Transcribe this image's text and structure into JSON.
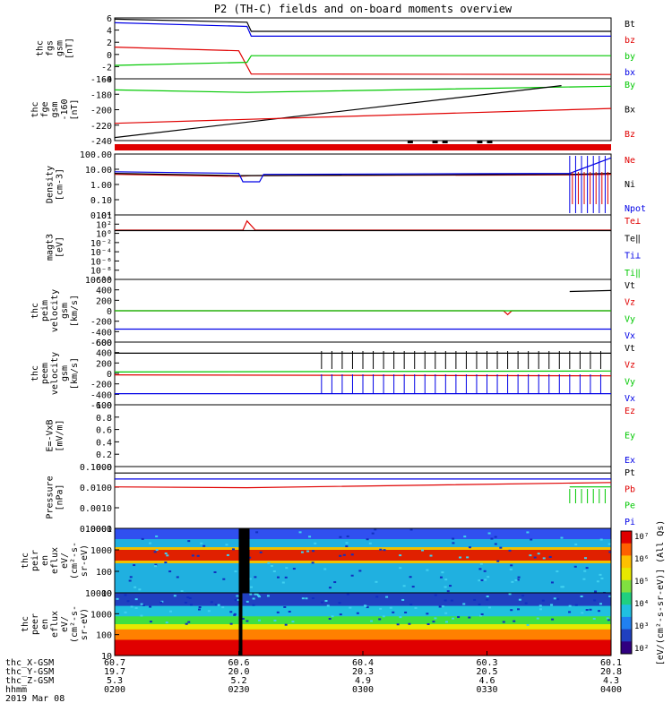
{
  "title": "P2 (TH-C) fields and on-board moments overview",
  "colors": {
    "black": "#000000",
    "red": "#e00000",
    "green": "#00c800",
    "blue": "#0000e6"
  },
  "panels": [
    {
      "id": "fgs",
      "ylabel": [
        "thc",
        "fgs",
        "gsm",
        "[nT]"
      ],
      "ticks": [
        "6",
        "4",
        "2",
        "0",
        "-2",
        "-4"
      ],
      "legend": [
        {
          "t": "Bt",
          "c": "black"
        },
        {
          "t": "bz",
          "c": "red"
        },
        {
          "t": "by",
          "c": "green"
        },
        {
          "t": "bx",
          "c": "blue"
        }
      ]
    },
    {
      "id": "fge",
      "ylabel": [
        "thc",
        "fge",
        "gsm",
        "-160",
        "[nT]"
      ],
      "ticks": [
        "-160",
        "-180",
        "-200",
        "-220",
        "-240"
      ],
      "legend": [
        {
          "t": "By",
          "c": "green"
        },
        {
          "t": "Bx",
          "c": "black"
        },
        {
          "t": "Bz",
          "c": "red"
        }
      ]
    },
    {
      "id": "density",
      "ylabel": [
        "Density",
        "[cm-3]"
      ],
      "ticks": [
        "100.00",
        "10.00",
        "1.00",
        "0.10",
        "0.01"
      ],
      "legend": [
        {
          "t": "Ne",
          "c": "red"
        },
        {
          "t": "Ni",
          "c": "black"
        },
        {
          "t": "Npot",
          "c": "blue"
        }
      ]
    },
    {
      "id": "temp",
      "ylabel": [
        "magt3",
        "[eV]"
      ],
      "ticks": [
        "10⁴",
        "10²",
        "10⁰",
        "10⁻²",
        "10⁻⁴",
        "10⁻⁶",
        "10⁻⁸",
        "10⁻¹⁰"
      ],
      "legend": [
        {
          "t": "Te⊥",
          "c": "red"
        },
        {
          "t": "Te‖",
          "c": "black"
        },
        {
          "t": "Ti⊥",
          "c": "blue"
        },
        {
          "t": "Ti‖",
          "c": "green"
        }
      ]
    },
    {
      "id": "peim",
      "ylabel": [
        "thc",
        "peim",
        "velocity",
        "gsm",
        "[km/s]"
      ],
      "ticks": [
        "600",
        "400",
        "200",
        "0",
        "-200",
        "-400",
        "-600"
      ],
      "legend": [
        {
          "t": "Vt",
          "c": "black"
        },
        {
          "t": "Vz",
          "c": "red"
        },
        {
          "t": "Vy",
          "c": "green"
        },
        {
          "t": "Vx",
          "c": "blue"
        }
      ]
    },
    {
      "id": "peem",
      "ylabel": [
        "thc",
        "peem",
        "velocity",
        "gsm",
        "[km/s]"
      ],
      "ticks": [
        "600",
        "400",
        "200",
        "0",
        "-200",
        "-400",
        "-600"
      ],
      "legend": [
        {
          "t": "Vt",
          "c": "black"
        },
        {
          "t": "Vz",
          "c": "red"
        },
        {
          "t": "Vy",
          "c": "green"
        },
        {
          "t": "Vx",
          "c": "blue"
        }
      ]
    },
    {
      "id": "efield",
      "ylabel": [
        "E=-VxB",
        "[mV/m]"
      ],
      "ticks": [
        "1.0",
        "0.8",
        "0.6",
        "0.4",
        "0.2",
        "0.0"
      ],
      "legend": [
        {
          "t": "Ez",
          "c": "red"
        },
        {
          "t": "Ey",
          "c": "green"
        },
        {
          "t": "Ex",
          "c": "blue"
        }
      ]
    },
    {
      "id": "pressure",
      "ylabel": [
        "Pressure",
        "[nPa]"
      ],
      "ticks": [
        "0.1000",
        "0.0100",
        "0.0010",
        "0.0001"
      ],
      "legend": [
        {
          "t": "Pt",
          "c": "black"
        },
        {
          "t": "Pb",
          "c": "red"
        },
        {
          "t": "Pe",
          "c": "green"
        },
        {
          "t": "Pi",
          "c": "blue"
        }
      ]
    },
    {
      "id": "peir",
      "ylabel": [
        "thc",
        "peir",
        "en",
        "eflux",
        "eV/",
        "(cm²-s-",
        "sr-eV)"
      ],
      "ticks": [
        "10000",
        "1000",
        "100",
        "10"
      ],
      "legend": []
    },
    {
      "id": "peer",
      "ylabel": [
        "thc",
        "peer",
        "en",
        "eflux",
        "eV/",
        "(cm²-s-",
        "sr-eV)"
      ],
      "ticks": [
        "10000",
        "1000",
        "100",
        "10"
      ],
      "legend": []
    }
  ],
  "colorbar": {
    "ticks": [
      "10⁷",
      "10⁶",
      "10⁵",
      "10⁴",
      "10³",
      "10²"
    ],
    "label": "[eV/(cm²-s-sr-eV)] (All Qs)"
  },
  "xaxis": {
    "row_labels": [
      "thc_X-GSM",
      "thc_Y-GSM",
      "thc_Z-GSM",
      "hhmm",
      "2019 Mar 08"
    ],
    "ticks": [
      {
        "x": "60.7",
        "y": "19.7",
        "z": "5.3",
        "t": "0200"
      },
      {
        "x": "60.6",
        "y": "20.0",
        "z": "5.2",
        "t": "0230"
      },
      {
        "x": "60.4",
        "y": "20.3",
        "z": "4.9",
        "t": "0300"
      },
      {
        "x": "60.3",
        "y": "20.5",
        "z": "4.6",
        "t": "0330"
      },
      {
        "x": "60.1",
        "y": "20.8",
        "z": "4.3",
        "t": "0400"
      }
    ]
  },
  "chart_data": {
    "type": "line",
    "title": "P2 (TH-C) fields and on-board moments overview",
    "x_range": [
      "02:00",
      "04:00"
    ],
    "series": [
      {
        "panel": "fgs",
        "name": "Bt",
        "points": [
          [
            "02:00",
            5.8
          ],
          [
            "02:32",
            5.3
          ],
          [
            "02:33",
            3.8
          ],
          [
            "04:00",
            3.8
          ]
        ]
      },
      {
        "panel": "fgs",
        "name": "bz",
        "points": [
          [
            "02:00",
            1.2
          ],
          [
            "02:30",
            0.6
          ],
          [
            "02:33",
            -3.2
          ],
          [
            "04:00",
            -3.3
          ]
        ]
      },
      {
        "panel": "fgs",
        "name": "by",
        "points": [
          [
            "02:00",
            -1.8
          ],
          [
            "02:32",
            -1.3
          ],
          [
            "02:33",
            -0.2
          ],
          [
            "04:00",
            -0.2
          ]
        ]
      },
      {
        "panel": "fgs",
        "name": "bx",
        "points": [
          [
            "02:00",
            5.2
          ],
          [
            "02:32",
            4.6
          ],
          [
            "02:33",
            3.0
          ],
          [
            "04:00",
            3.0
          ]
        ]
      },
      {
        "panel": "fge",
        "name": "By",
        "points": [
          [
            "02:00",
            -168
          ],
          [
            "02:32",
            -172
          ],
          [
            "04:00",
            -162
          ]
        ]
      },
      {
        "panel": "fge",
        "name": "Bx",
        "points": [
          [
            "02:00",
            -245
          ],
          [
            "03:48",
            -161
          ]
        ]
      },
      {
        "panel": "fge",
        "name": "Bz",
        "points": [
          [
            "02:00",
            -222
          ],
          [
            "04:00",
            -198
          ]
        ]
      },
      {
        "panel": "density",
        "name": "Ne",
        "points": [
          [
            "02:00",
            5
          ],
          [
            "02:30",
            3.5
          ],
          [
            "02:33",
            4
          ],
          [
            "03:50",
            4.5
          ],
          [
            "04:00",
            5
          ]
        ]
      },
      {
        "panel": "density",
        "name": "Ni",
        "points": [
          [
            "02:00",
            6
          ],
          [
            "02:30",
            4
          ],
          [
            "03:50",
            5
          ],
          [
            "04:00",
            6
          ]
        ]
      },
      {
        "panel": "density",
        "name": "Npot",
        "points": [
          [
            "02:00",
            8
          ],
          [
            "02:30",
            6
          ],
          [
            "02:31",
            1.3
          ],
          [
            "02:35",
            1.3
          ],
          [
            "02:36",
            5
          ],
          [
            "03:50",
            6
          ],
          [
            "04:00",
            100
          ]
        ]
      },
      {
        "panel": "temp",
        "name": "Te⊥",
        "points": [
          [
            "02:00",
            5
          ],
          [
            "02:31",
            5
          ],
          [
            "02:32",
            500
          ],
          [
            "02:34",
            5
          ],
          [
            "04:00",
            5
          ]
        ]
      },
      {
        "panel": "temp",
        "name": "Te‖",
        "points": [
          [
            "02:00",
            4
          ],
          [
            "04:00",
            4
          ]
        ]
      },
      {
        "panel": "peim",
        "name": "Vt",
        "points": [
          [
            "02:00",
            null
          ],
          [
            "03:50",
            400
          ],
          [
            "04:00",
            420
          ]
        ]
      },
      {
        "panel": "peim",
        "name": "Vz",
        "points": [
          [
            "02:00",
            0
          ],
          [
            "03:34",
            0
          ],
          [
            "03:35",
            -80
          ],
          [
            "03:36",
            0
          ],
          [
            "04:00",
            0
          ]
        ]
      },
      {
        "panel": "peim",
        "name": "Vy",
        "points": [
          [
            "02:00",
            0
          ],
          [
            "04:00",
            0
          ]
        ]
      },
      {
        "panel": "peim",
        "name": "Vx",
        "points": [
          [
            "02:00",
            -380
          ],
          [
            "04:00",
            -380
          ]
        ]
      },
      {
        "panel": "peem",
        "name": "Vt",
        "points": [
          [
            "02:00",
            420
          ],
          [
            "04:00",
            420
          ]
        ]
      },
      {
        "panel": "peem",
        "name": "Vz",
        "points": [
          [
            "02:00",
            -30
          ],
          [
            "04:00",
            -50
          ]
        ]
      },
      {
        "panel": "peem",
        "name": "Vy",
        "points": [
          [
            "02:00",
            30
          ],
          [
            "04:00",
            50
          ]
        ]
      },
      {
        "panel": "peem",
        "name": "Vx",
        "points": [
          [
            "02:00",
            -420
          ],
          [
            "04:00",
            -420
          ]
        ]
      },
      {
        "panel": "pressure",
        "name": "Pt",
        "points": [
          [
            "02:00",
            0.06
          ],
          [
            "04:00",
            0.06
          ]
        ]
      },
      {
        "panel": "pressure",
        "name": "Pb",
        "points": [
          [
            "02:00",
            0.012
          ],
          [
            "02:32",
            0.011
          ],
          [
            "04:00",
            0.02
          ]
        ]
      },
      {
        "panel": "pressure",
        "name": "Pe",
        "points": [
          [
            "03:50",
            0.012
          ],
          [
            "04:00",
            0.012
          ]
        ]
      },
      {
        "panel": "pressure",
        "name": "Pi",
        "points": [
          [
            "02:00",
            0.03
          ],
          [
            "04:00",
            0.03
          ]
        ]
      }
    ]
  }
}
